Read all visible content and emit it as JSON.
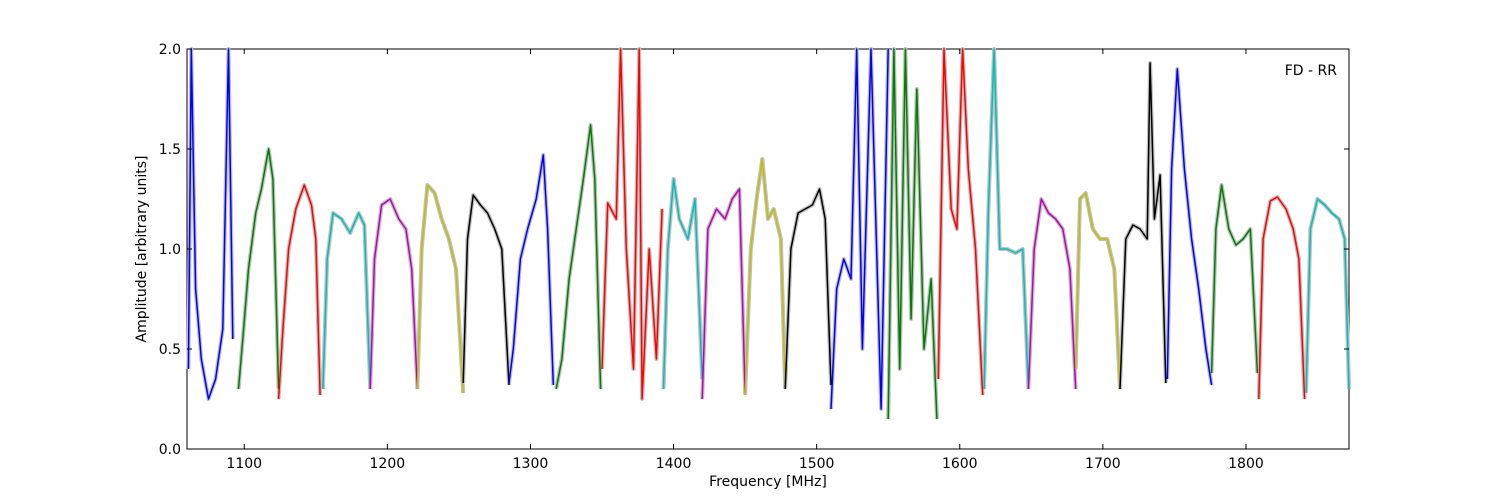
{
  "chart_data": {
    "type": "line",
    "xlabel": "Frequency [MHz]",
    "ylabel": "Amplitude [arbitrary units]",
    "xlim": [
      1060,
      1872
    ],
    "ylim": [
      0.0,
      2.0
    ],
    "xticks": [
      1100,
      1200,
      1300,
      1400,
      1500,
      1600,
      1700,
      1800
    ],
    "xtick_labels": [
      "1100",
      "1200",
      "1300",
      "1400",
      "1500",
      "1600",
      "1700",
      "1800"
    ],
    "yticks": [
      0.0,
      0.5,
      1.0,
      1.5,
      2.0
    ],
    "ytick_labels": [
      "0.0",
      "0.5",
      "1.0",
      "1.5",
      "2.0"
    ],
    "annotation": "FD - RR",
    "grid": false,
    "background_color": "#c0c0c0",
    "band_colors": [
      "#0000ff",
      "#008000",
      "#ff0000",
      "#00bfbf",
      "#bf00bf",
      "#bfbf00",
      "#000000"
    ],
    "bands": [
      {
        "x": [
          1061,
          1063,
          1066,
          1070,
          1075,
          1080,
          1085,
          1089,
          1092
        ],
        "y": [
          0.4,
          2.0,
          0.8,
          0.45,
          0.25,
          0.35,
          0.6,
          2.0,
          0.55
        ]
      },
      {
        "x": [
          1096,
          1099,
          1103,
          1108,
          1112,
          1117,
          1120,
          1124
        ],
        "y": [
          0.3,
          0.55,
          0.9,
          1.18,
          1.3,
          1.5,
          1.35,
          0.3
        ]
      },
      {
        "x": [
          1124,
          1127,
          1131,
          1136,
          1142,
          1147,
          1150,
          1153
        ],
        "y": [
          0.25,
          0.6,
          1.0,
          1.2,
          1.32,
          1.22,
          1.05,
          0.27
        ]
      },
      {
        "x": [
          1155,
          1158,
          1162,
          1168,
          1174,
          1180,
          1184,
          1188
        ],
        "y": [
          0.3,
          0.95,
          1.18,
          1.15,
          1.08,
          1.18,
          1.12,
          0.3
        ]
      },
      {
        "x": [
          1188,
          1191,
          1196,
          1202,
          1208,
          1213,
          1217,
          1221
        ],
        "y": [
          0.3,
          0.95,
          1.22,
          1.25,
          1.15,
          1.1,
          0.9,
          0.3
        ]
      },
      {
        "x": [
          1221,
          1224,
          1228,
          1233,
          1238,
          1243,
          1248,
          1253
        ],
        "y": [
          0.3,
          1.0,
          1.32,
          1.28,
          1.15,
          1.05,
          0.9,
          0.28
        ]
      },
      {
        "x": [
          1253,
          1256,
          1260,
          1265,
          1270,
          1275,
          1280,
          1285
        ],
        "y": [
          0.33,
          1.05,
          1.27,
          1.22,
          1.18,
          1.1,
          1.0,
          0.32
        ]
      },
      {
        "x": [
          1285,
          1288,
          1293,
          1298,
          1304,
          1309,
          1312,
          1316
        ],
        "y": [
          0.33,
          0.5,
          0.95,
          1.1,
          1.25,
          1.47,
          1.1,
          0.32
        ]
      },
      {
        "x": [
          1318,
          1322,
          1327,
          1332,
          1337,
          1342,
          1345,
          1349
        ],
        "y": [
          0.3,
          0.45,
          0.85,
          1.1,
          1.35,
          1.62,
          1.35,
          0.3
        ]
      },
      {
        "x": [
          1350,
          1354,
          1360,
          1363,
          1367,
          1372,
          1376,
          1378,
          1383,
          1388,
          1392
        ],
        "y": [
          0.4,
          1.23,
          1.15,
          2.0,
          1.0,
          0.4,
          2.0,
          0.25,
          1.0,
          0.45,
          1.2
        ]
      },
      {
        "x": [
          1393,
          1396,
          1400,
          1404,
          1410,
          1415,
          1420
        ],
        "y": [
          0.3,
          1.0,
          1.35,
          1.15,
          1.05,
          1.25,
          0.35
        ]
      },
      {
        "x": [
          1420,
          1424,
          1430,
          1436,
          1441,
          1446,
          1450
        ],
        "y": [
          0.25,
          1.1,
          1.2,
          1.15,
          1.25,
          1.3,
          0.28
        ]
      },
      {
        "x": [
          1450,
          1454,
          1458,
          1462,
          1466,
          1470,
          1475,
          1478
        ],
        "y": [
          0.27,
          1.0,
          1.25,
          1.45,
          1.15,
          1.2,
          1.05,
          0.3
        ]
      },
      {
        "x": [
          1478,
          1482,
          1487,
          1492,
          1497,
          1502,
          1506,
          1510
        ],
        "y": [
          0.3,
          1.0,
          1.18,
          1.2,
          1.22,
          1.3,
          1.15,
          0.32
        ]
      },
      {
        "x": [
          1510,
          1514,
          1519,
          1524,
          1528,
          1532,
          1538,
          1545,
          1550
        ],
        "y": [
          0.2,
          0.8,
          0.95,
          0.85,
          2.0,
          0.5,
          2.0,
          0.2,
          2.0
        ]
      },
      {
        "x": [
          1550,
          1554,
          1558,
          1562,
          1566,
          1570,
          1575,
          1580,
          1584
        ],
        "y": [
          0.15,
          2.0,
          0.4,
          2.0,
          0.65,
          1.8,
          0.5,
          0.85,
          0.15
        ]
      },
      {
        "x": [
          1585,
          1589,
          1594,
          1598,
          1602,
          1606,
          1611,
          1616
        ],
        "y": [
          0.35,
          2.0,
          1.2,
          1.1,
          2.0,
          1.4,
          1.0,
          0.27
        ]
      },
      {
        "x": [
          1617,
          1620,
          1624,
          1628,
          1633,
          1639,
          1644,
          1648
        ],
        "y": [
          0.3,
          1.2,
          2.0,
          1.0,
          1.0,
          0.98,
          1.0,
          0.3
        ]
      },
      {
        "x": [
          1648,
          1652,
          1657,
          1662,
          1667,
          1672,
          1677,
          1681
        ],
        "y": [
          0.3,
          1.0,
          1.25,
          1.18,
          1.15,
          1.1,
          0.9,
          0.3
        ]
      },
      {
        "x": [
          1681,
          1684,
          1688,
          1693,
          1698,
          1703,
          1708,
          1712
        ],
        "y": [
          0.4,
          1.25,
          1.28,
          1.1,
          1.05,
          1.05,
          0.9,
          0.3
        ]
      },
      {
        "x": [
          1712,
          1716,
          1721,
          1726,
          1731,
          1733,
          1736,
          1740,
          1744
        ],
        "y": [
          0.3,
          1.05,
          1.12,
          1.1,
          1.05,
          1.93,
          1.15,
          1.37,
          0.33
        ]
      },
      {
        "x": [
          1745,
          1748,
          1752,
          1757,
          1762,
          1767,
          1772,
          1776
        ],
        "y": [
          0.35,
          1.4,
          1.9,
          1.4,
          1.05,
          0.8,
          0.5,
          0.32
        ]
      },
      {
        "x": [
          1776,
          1779,
          1783,
          1788,
          1793,
          1798,
          1803,
          1808
        ],
        "y": [
          0.38,
          1.1,
          1.32,
          1.1,
          1.02,
          1.05,
          1.1,
          0.38
        ]
      },
      {
        "x": [
          1809,
          1812,
          1817,
          1822,
          1828,
          1833,
          1837,
          1841
        ],
        "y": [
          0.25,
          1.05,
          1.24,
          1.26,
          1.2,
          1.1,
          0.95,
          0.25
        ]
      },
      {
        "x": [
          1842,
          1845,
          1850,
          1855,
          1860,
          1865,
          1869,
          1872
        ],
        "y": [
          0.28,
          1.1,
          1.25,
          1.22,
          1.18,
          1.15,
          1.05,
          0.3
        ]
      }
    ]
  }
}
